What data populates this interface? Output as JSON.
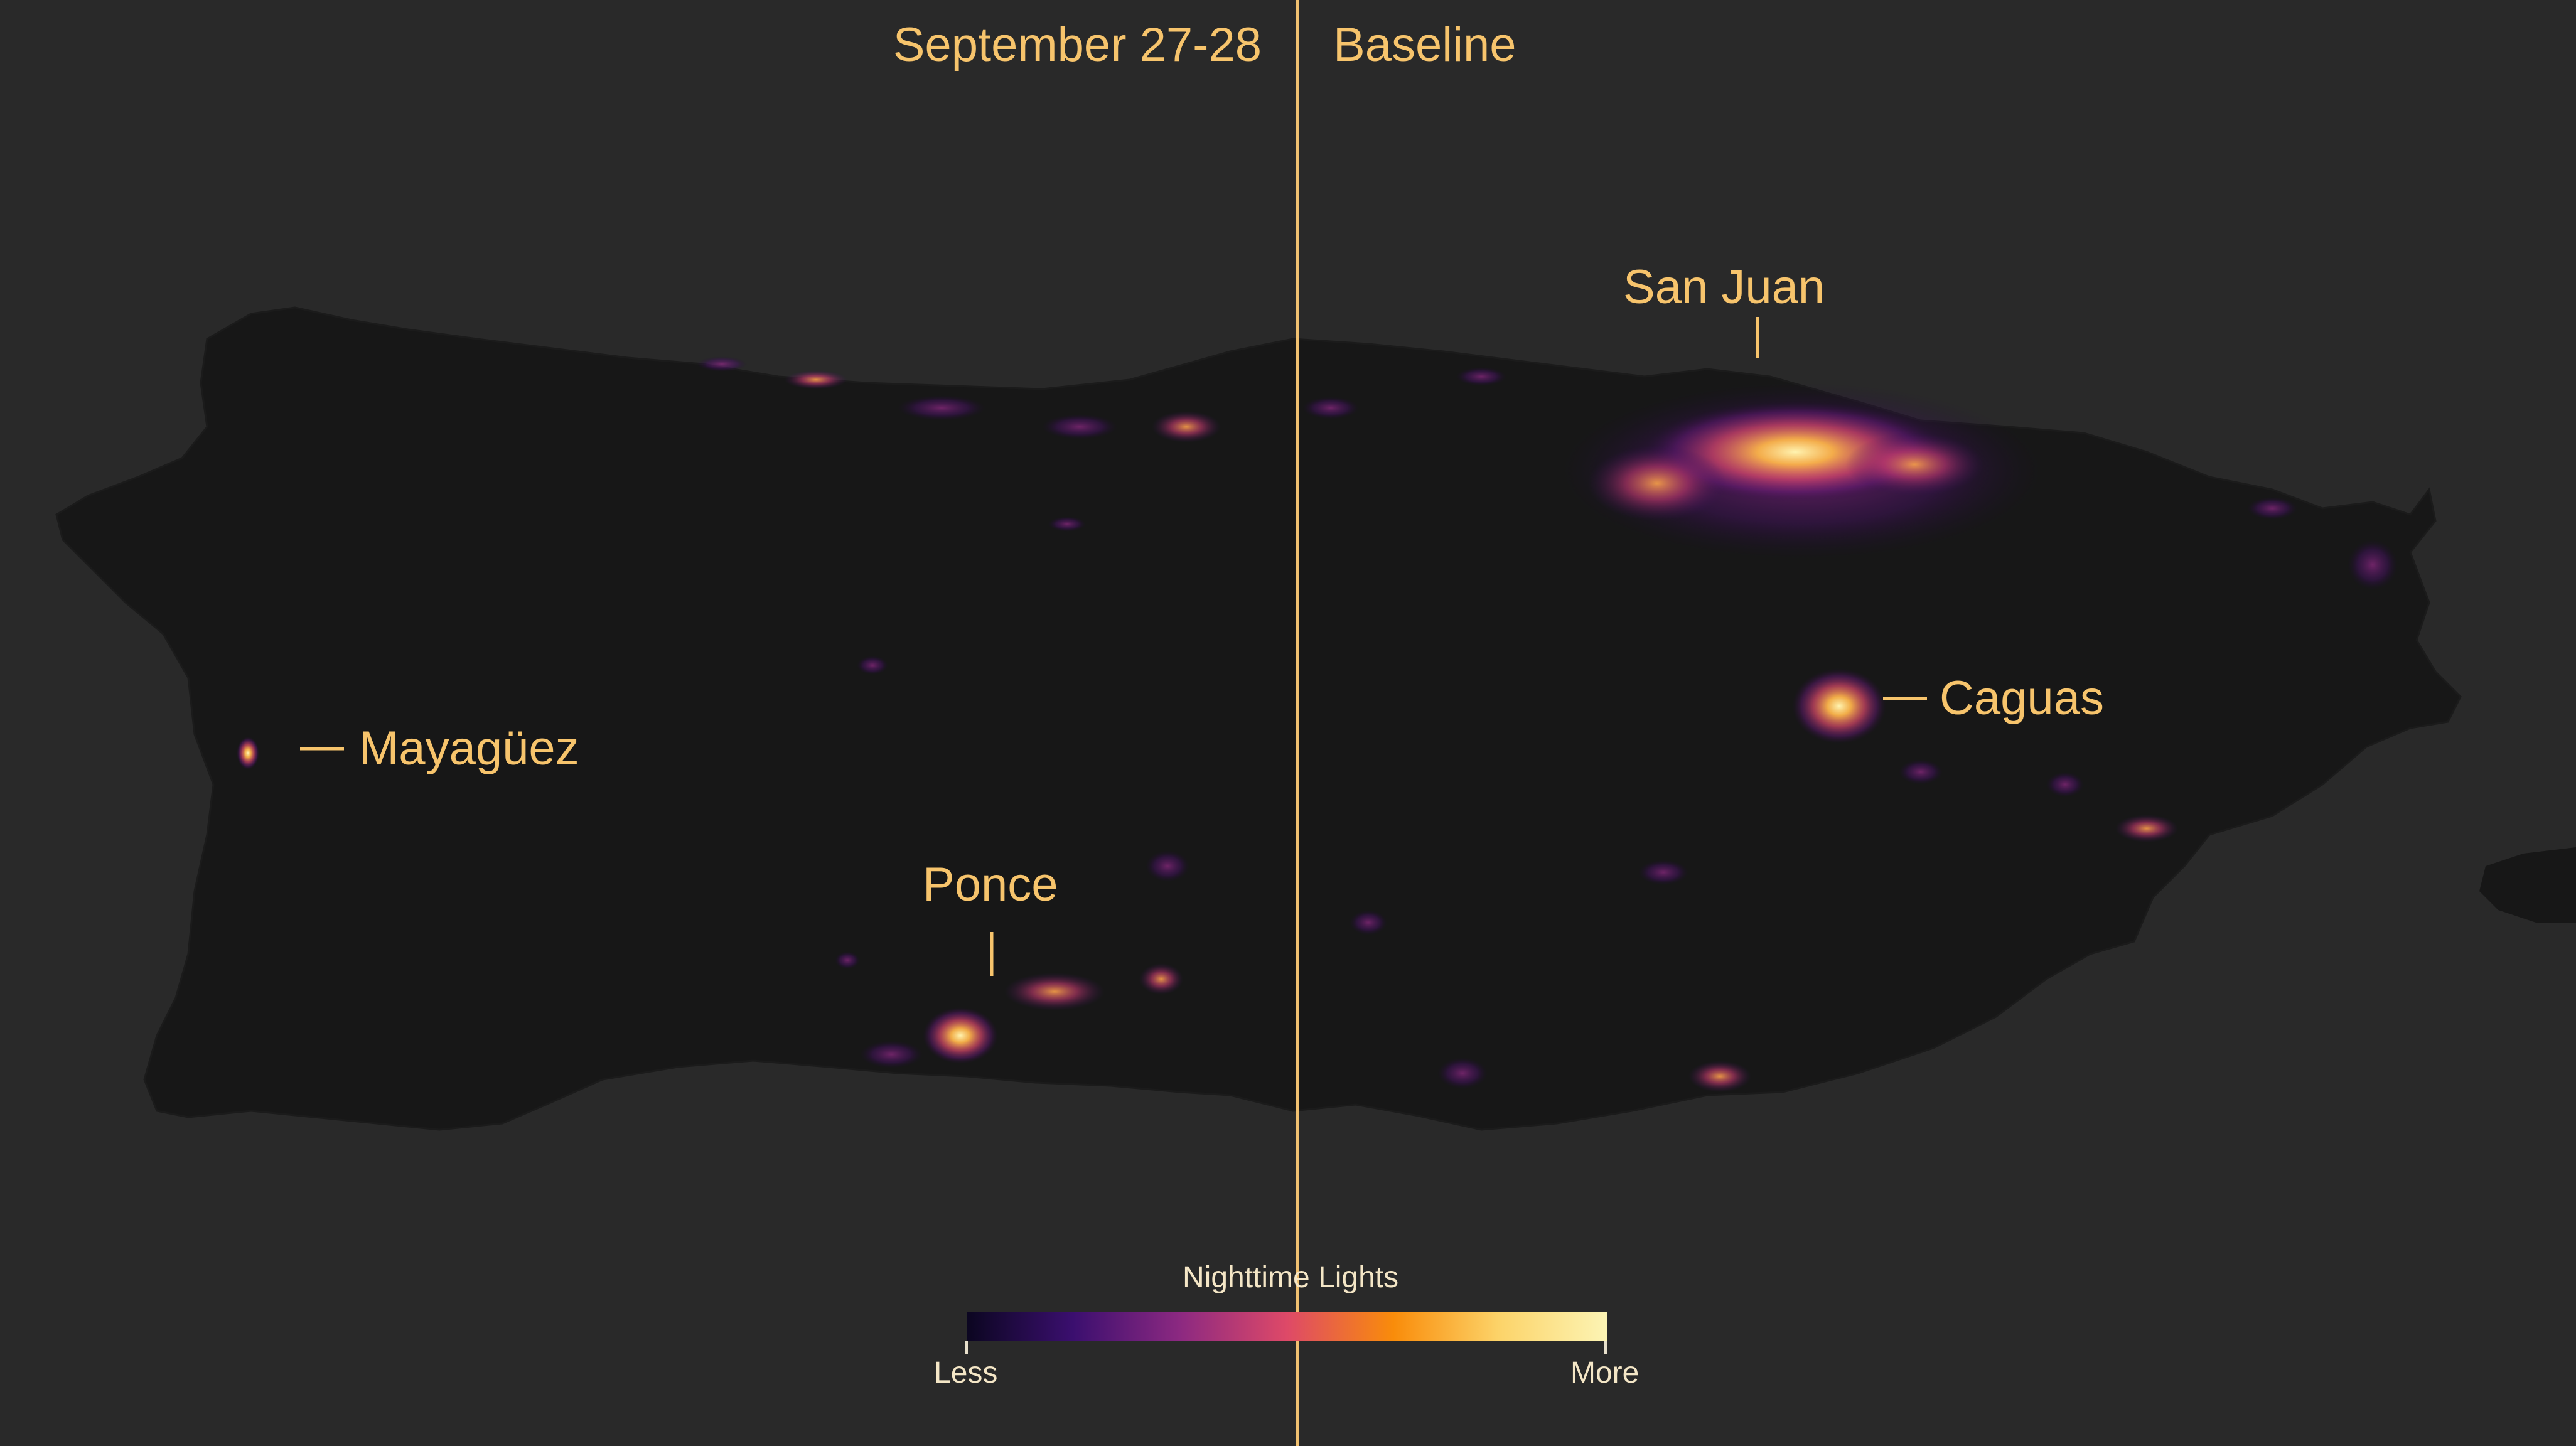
{
  "header": {
    "left_label": "September 27-28",
    "right_label": "Baseline"
  },
  "cities": {
    "san_juan": "San Juan",
    "caguas": "Caguas",
    "mayaguez": "Mayagüez",
    "ponce": "Ponce"
  },
  "legend": {
    "title": "Nighttime Lights",
    "min_label": "Less",
    "max_label": "More",
    "colors": [
      "#0b0620",
      "#3b0f6f",
      "#8c2981",
      "#de4968",
      "#f98c0a",
      "#fcd46a",
      "#fcf4b4"
    ]
  },
  "colors": {
    "background": "#292929",
    "land": "#161616",
    "label": "#f7c46c",
    "divider": "#f0c070"
  }
}
